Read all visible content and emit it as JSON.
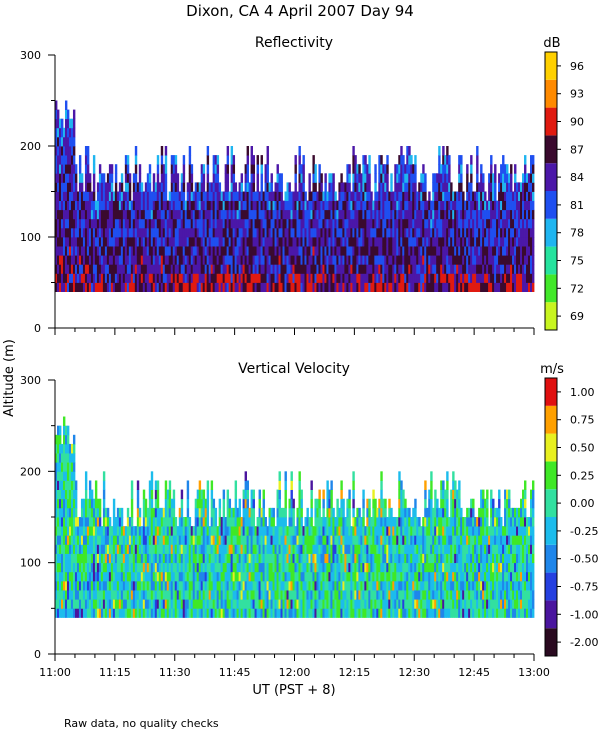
{
  "figure": {
    "title": "Dixon, CA   4 April 2007   Day   94",
    "ylabel": "Altitude (m)",
    "xlabel": "UT  (PST + 8)",
    "footnote": "Raw data, no quality checks"
  },
  "chart_data": [
    {
      "type": "heatmap",
      "title": "Reflectivity",
      "units": "dB",
      "x_range": [
        "11:00",
        "13:00"
      ],
      "x_ticks": [
        "11:00",
        "11:15",
        "11:30",
        "11:45",
        "12:00",
        "12:15",
        "12:30",
        "12:45",
        "13:00"
      ],
      "ylim": [
        0,
        300
      ],
      "y_ticks": [
        0,
        100,
        200,
        300
      ],
      "data_floor_m": 40,
      "typical_top_m": [
        140,
        200
      ],
      "max_top_m": 260,
      "colorbar": {
        "labels": [
          "69",
          "72",
          "75",
          "78",
          "81",
          "84",
          "87",
          "90",
          "93",
          "96"
        ],
        "colors": [
          "#c8f520",
          "#42e82a",
          "#26e39e",
          "#1fb5f0",
          "#1f4ff0",
          "#4b17a8",
          "#3a0a2e",
          "#e01a10",
          "#ff8a00",
          "#ffd000"
        ]
      }
    },
    {
      "type": "heatmap",
      "title": "Vertical Velocity",
      "units": "m/s",
      "x_range": [
        "11:00",
        "13:00"
      ],
      "x_ticks": [
        "11:00",
        "11:15",
        "11:30",
        "11:45",
        "12:00",
        "12:15",
        "12:30",
        "12:45",
        "13:00"
      ],
      "ylim": [
        0,
        300
      ],
      "y_ticks": [
        0,
        100,
        200,
        300
      ],
      "data_floor_m": 40,
      "typical_top_m": [
        140,
        200
      ],
      "max_top_m": 260,
      "colorbar": {
        "labels": [
          "-2.00",
          "-1.00",
          "-0.75",
          "-0.50",
          "-0.25",
          "0.00",
          "0.25",
          "0.50",
          "0.75",
          "1.00"
        ],
        "colors": [
          "#2a0a20",
          "#4a159e",
          "#2540e0",
          "#1f86ea",
          "#1cbcec",
          "#32e0a0",
          "#3fe826",
          "#e8f020",
          "#ffa000",
          "#e01010"
        ]
      }
    }
  ]
}
